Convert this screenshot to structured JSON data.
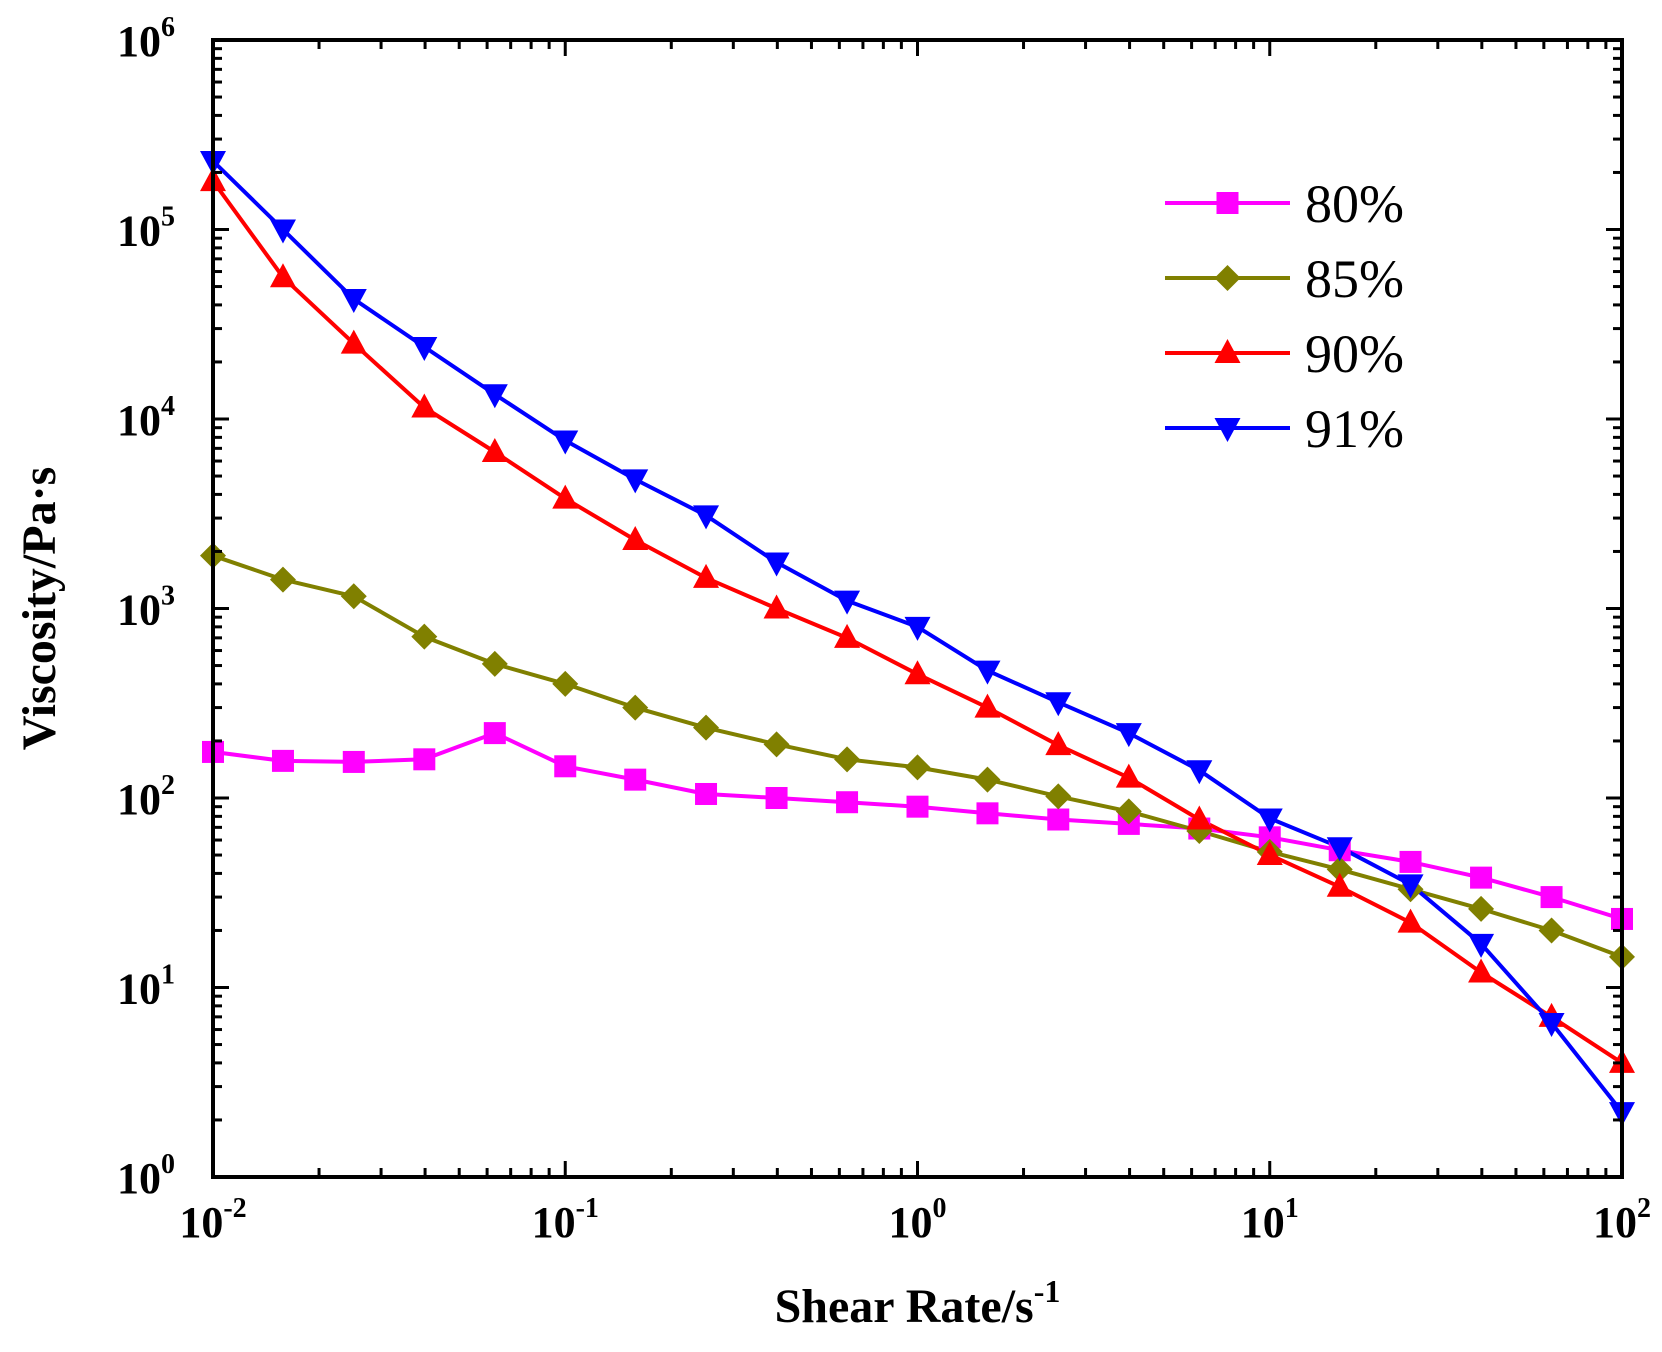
{
  "chart_data": {
    "type": "line",
    "title": "",
    "xlabel": "Shear Rate/s",
    "xlabel_superscript": "-1",
    "ylabel": "Viscosity/Pa·s",
    "xscale": "log",
    "yscale": "log",
    "xlim": [
      0.01,
      100
    ],
    "ylim": [
      1,
      1000000
    ],
    "legend_position": "top-right",
    "x_tick_labels": [
      {
        "base": "10",
        "exp": "-2"
      },
      {
        "base": "10",
        "exp": "-1"
      },
      {
        "base": "10",
        "exp": "0"
      },
      {
        "base": "10",
        "exp": "1"
      },
      {
        "base": "10",
        "exp": "2"
      }
    ],
    "y_tick_labels": [
      {
        "base": "10",
        "exp": "0"
      },
      {
        "base": "10",
        "exp": "1"
      },
      {
        "base": "10",
        "exp": "2"
      },
      {
        "base": "10",
        "exp": "3"
      },
      {
        "base": "10",
        "exp": "4"
      },
      {
        "base": "10",
        "exp": "5"
      },
      {
        "base": "10",
        "exp": "6"
      }
    ],
    "x": [
      0.01,
      0.0158,
      0.0251,
      0.0398,
      0.0631,
      0.1,
      0.158,
      0.251,
      0.398,
      0.631,
      1,
      1.58,
      2.51,
      3.98,
      6.31,
      10,
      15.8,
      25.1,
      39.8,
      63.1,
      100
    ],
    "series": [
      {
        "name": "80%",
        "color": "#ff00ff",
        "marker": "square",
        "values": [
          175,
          157,
          155,
          160,
          220,
          147,
          125,
          105,
          100,
          95,
          90,
          83,
          77,
          73,
          69,
          62,
          53,
          46,
          38,
          30,
          23
        ]
      },
      {
        "name": "85%",
        "color": "#808000",
        "marker": "diamond",
        "values": [
          1900,
          1420,
          1160,
          710,
          510,
          400,
          300,
          235,
          192,
          160,
          145,
          125,
          102,
          85,
          67,
          52,
          42,
          33,
          26,
          20,
          14.5
        ]
      },
      {
        "name": "90%",
        "color": "#ff0000",
        "marker": "triangle-up",
        "values": [
          180000,
          56000,
          25000,
          11500,
          6700,
          3800,
          2300,
          1450,
          1000,
          700,
          450,
          300,
          190,
          128,
          77,
          50,
          34,
          22,
          12,
          7,
          4
        ]
      },
      {
        "name": "91%",
        "color": "#0000ff",
        "marker": "triangle-down",
        "values": [
          230000,
          100000,
          43000,
          24000,
          13500,
          7700,
          4800,
          3100,
          1750,
          1100,
          800,
          470,
          320,
          220,
          140,
          78,
          55,
          35,
          17,
          6.5,
          2.2
        ]
      }
    ]
  }
}
